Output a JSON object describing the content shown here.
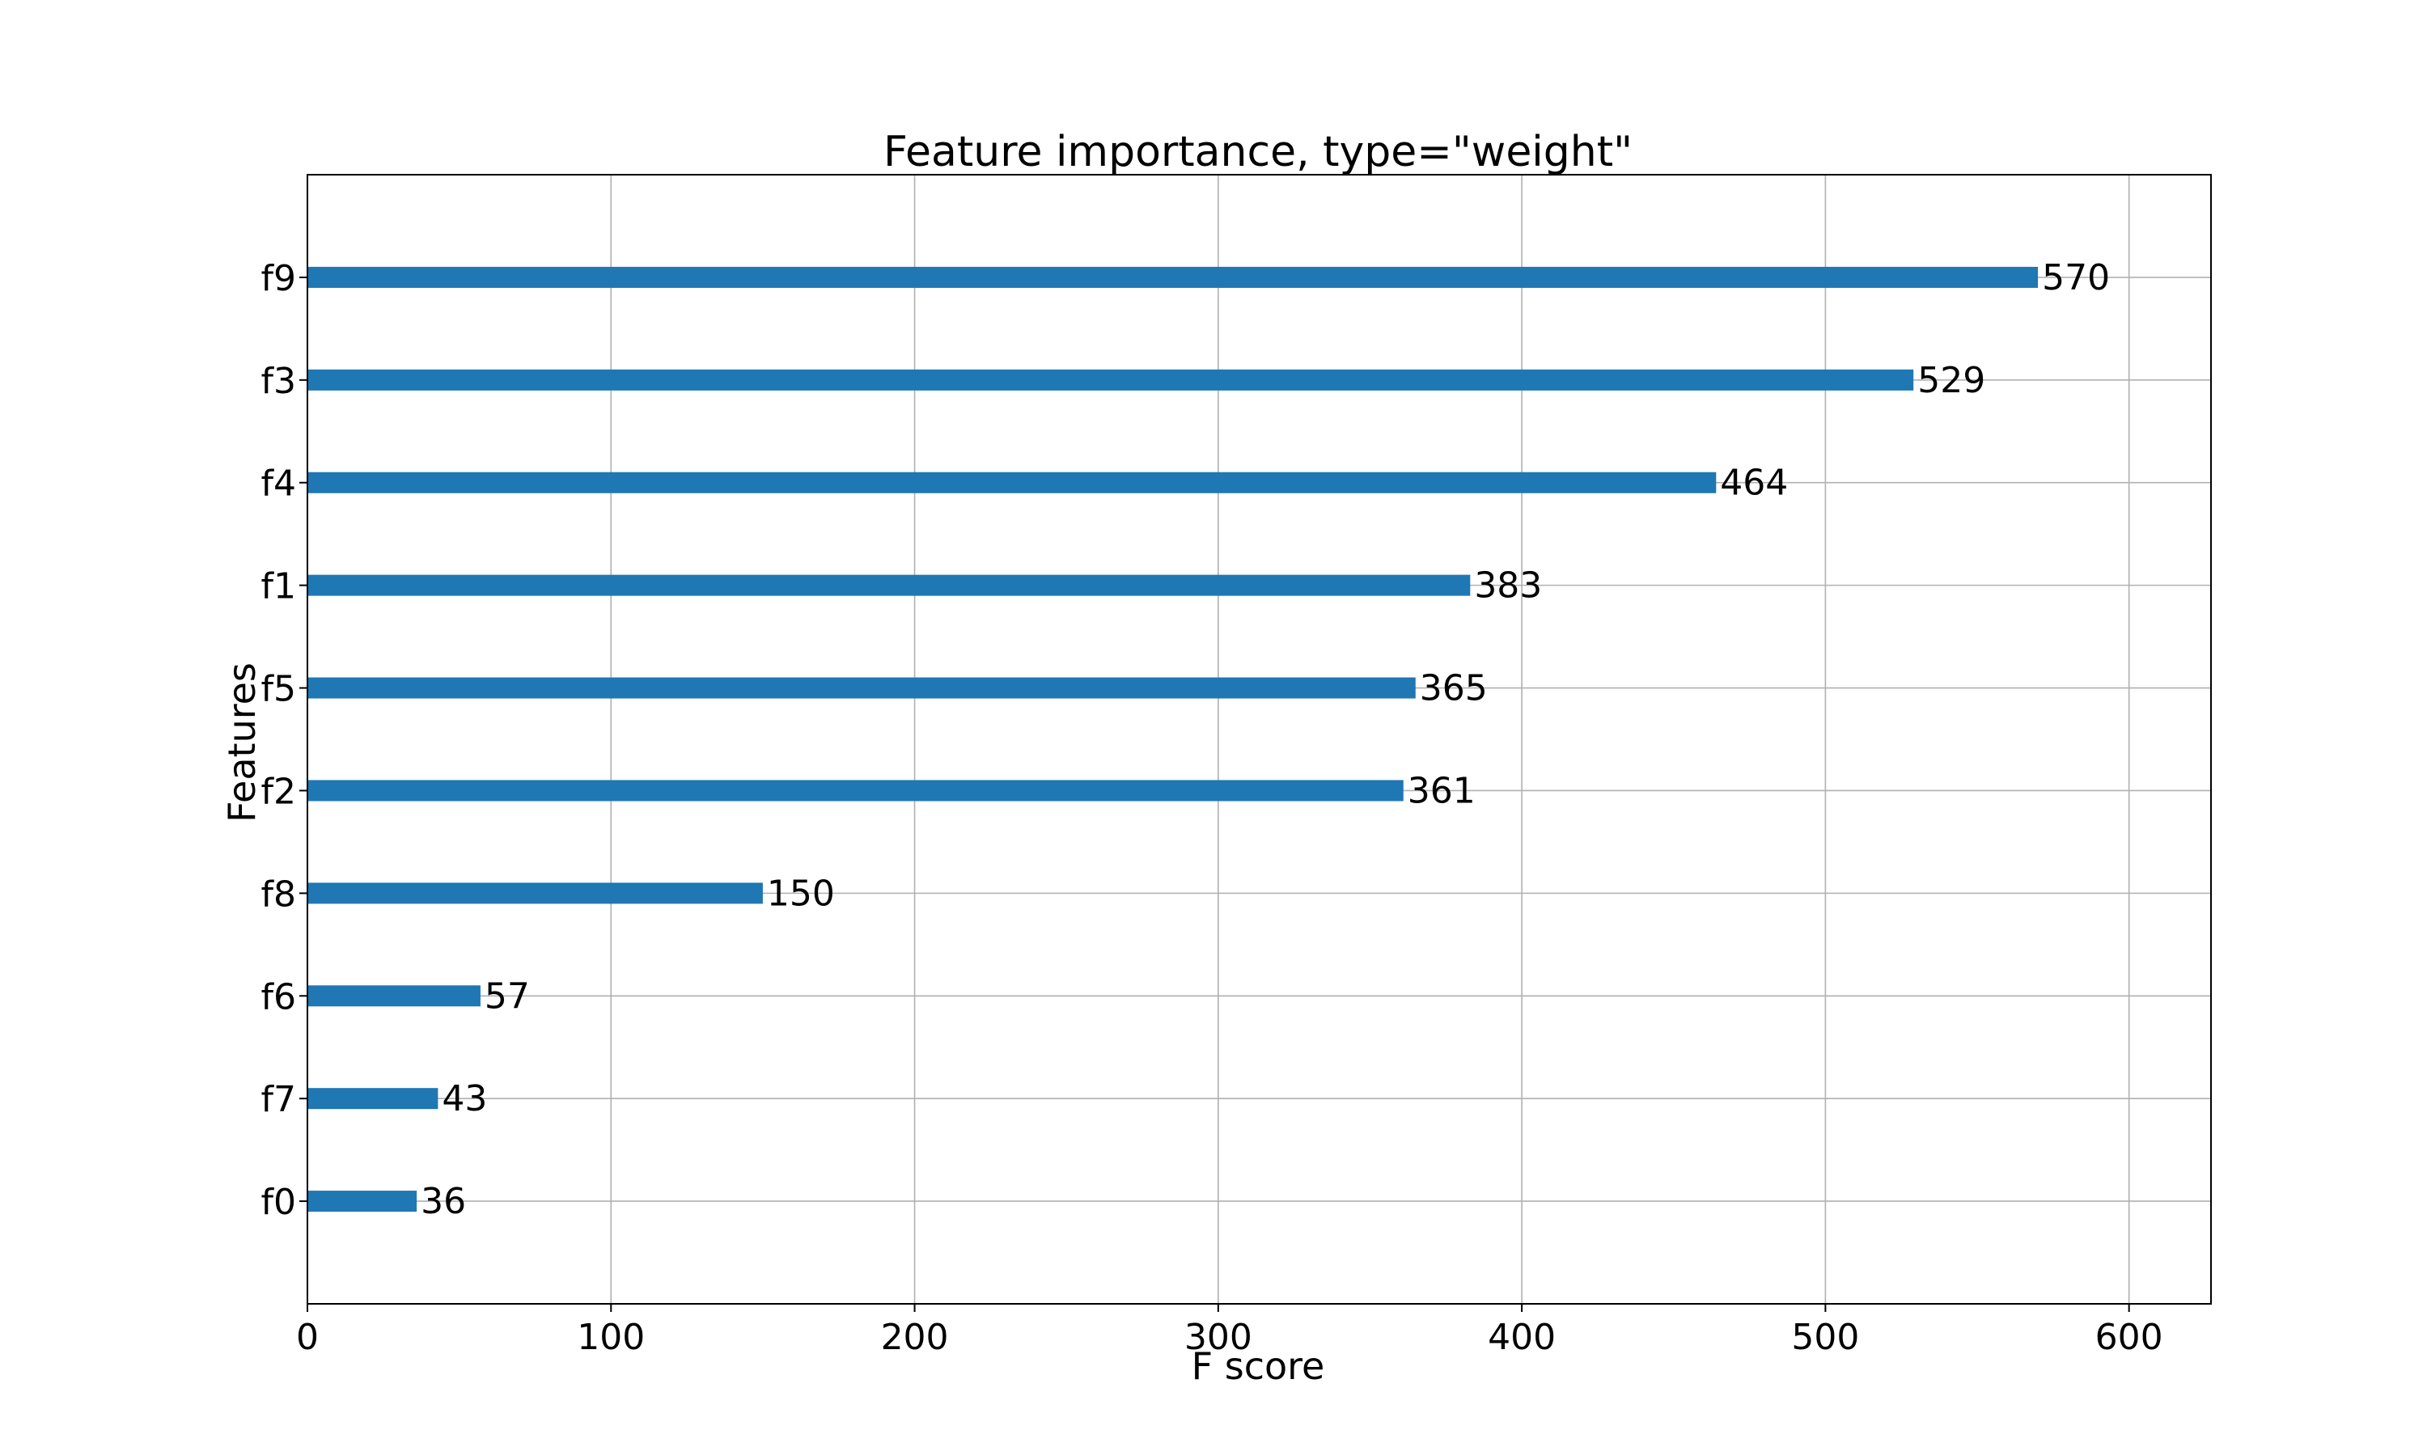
{
  "chart_data": {
    "type": "bar",
    "orientation": "horizontal",
    "title": "Feature importance, type=\"weight\"",
    "xlabel": "F score",
    "ylabel": "Features",
    "xlim": [
      0,
      627
    ],
    "xticks": [
      0,
      100,
      200,
      300,
      400,
      500,
      600
    ],
    "categories": [
      "f0",
      "f7",
      "f6",
      "f8",
      "f2",
      "f5",
      "f1",
      "f4",
      "f3",
      "f9"
    ],
    "values": [
      36,
      43,
      57,
      150,
      361,
      365,
      383,
      464,
      529,
      570
    ],
    "grid": true,
    "colors": {
      "bar": "#1f77b4",
      "grid": "#b0b0b0",
      "axes": "#000000"
    }
  }
}
